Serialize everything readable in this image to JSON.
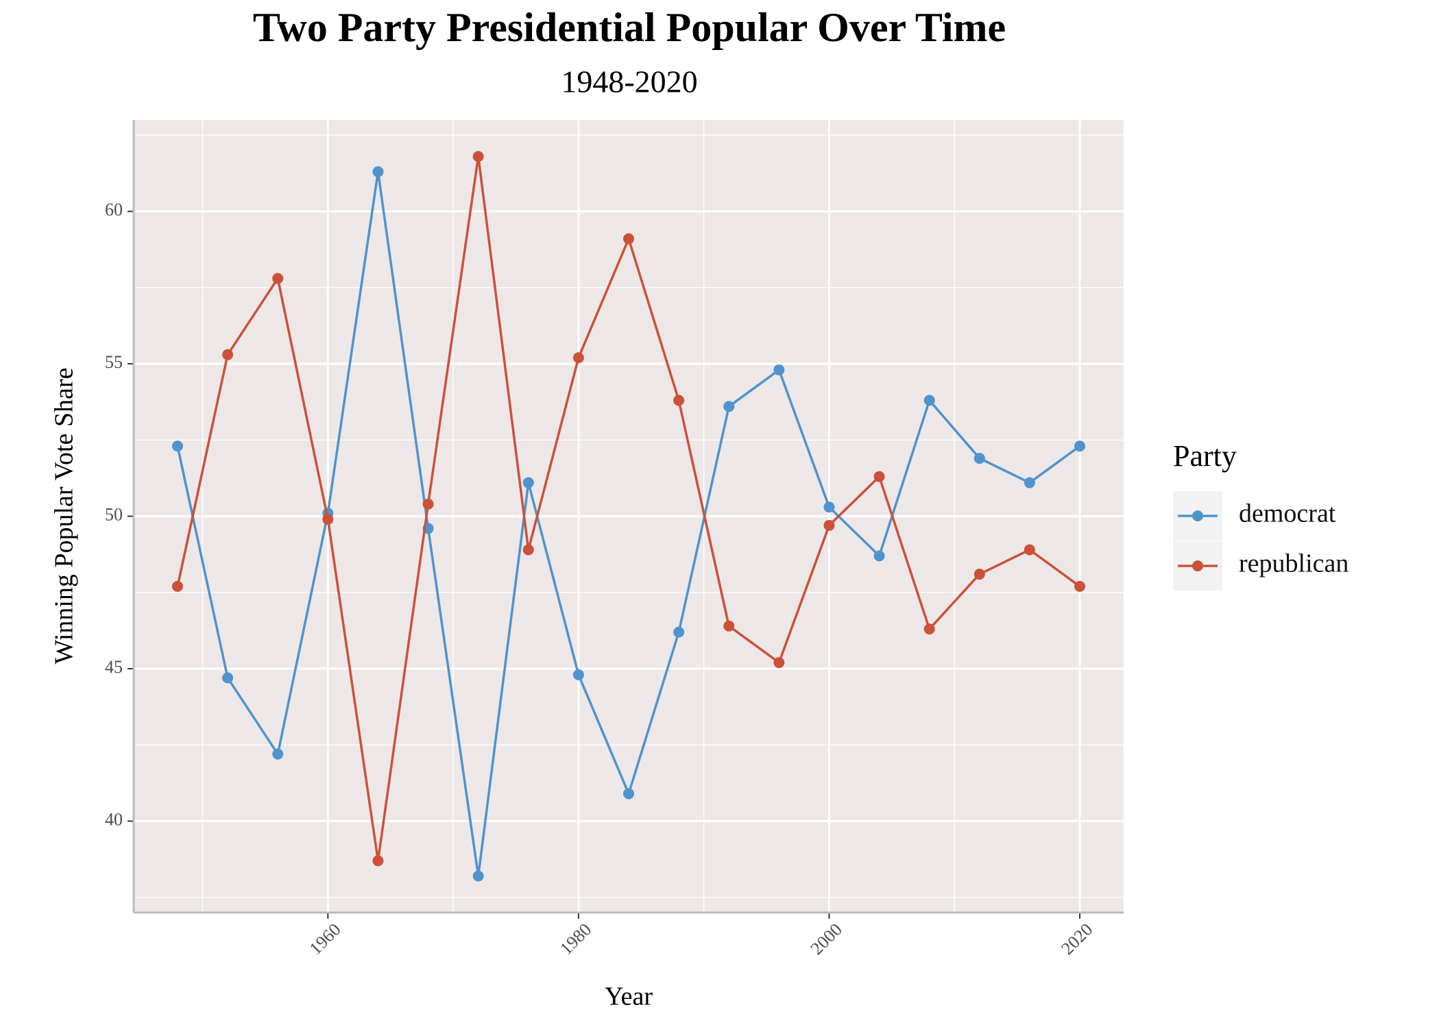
{
  "chart_data": {
    "type": "line",
    "title": "Two Party Presidential Popular Over Time",
    "subtitle": "1948-2020",
    "x_label": "Year",
    "y_label": "Winning Popular Vote Share",
    "legend_title": "Party",
    "legend_position": "right",
    "x": [
      1948,
      1952,
      1956,
      1960,
      1964,
      1968,
      1972,
      1976,
      1980,
      1984,
      1988,
      1992,
      1996,
      2000,
      2004,
      2008,
      2012,
      2016,
      2020
    ],
    "series": [
      {
        "name": "democrat",
        "color": "#4f93cf",
        "values": [
          52.3,
          44.7,
          42.2,
          50.1,
          61.3,
          49.6,
          38.2,
          51.1,
          44.8,
          40.9,
          46.2,
          53.6,
          54.8,
          50.3,
          48.7,
          53.8,
          51.9,
          51.1,
          52.3
        ]
      },
      {
        "name": "republican",
        "color": "#cc5139",
        "values": [
          47.7,
          55.3,
          57.8,
          49.9,
          38.7,
          50.4,
          61.8,
          48.9,
          55.2,
          59.1,
          53.8,
          46.4,
          45.2,
          49.7,
          51.3,
          46.3,
          48.1,
          48.9,
          47.7
        ]
      }
    ],
    "xlim": [
      1944.5,
      2023.5
    ],
    "ylim": [
      37,
      63
    ],
    "xticks": [
      1960,
      1980,
      2000,
      2020
    ],
    "yticks": [
      40,
      45,
      50,
      55,
      60
    ],
    "x_minor_grid": [
      1950,
      1970,
      1990,
      2010
    ],
    "y_minor_grid": [
      37.5,
      42.5,
      47.5,
      52.5,
      57.5,
      62.5
    ],
    "grid": true
  }
}
